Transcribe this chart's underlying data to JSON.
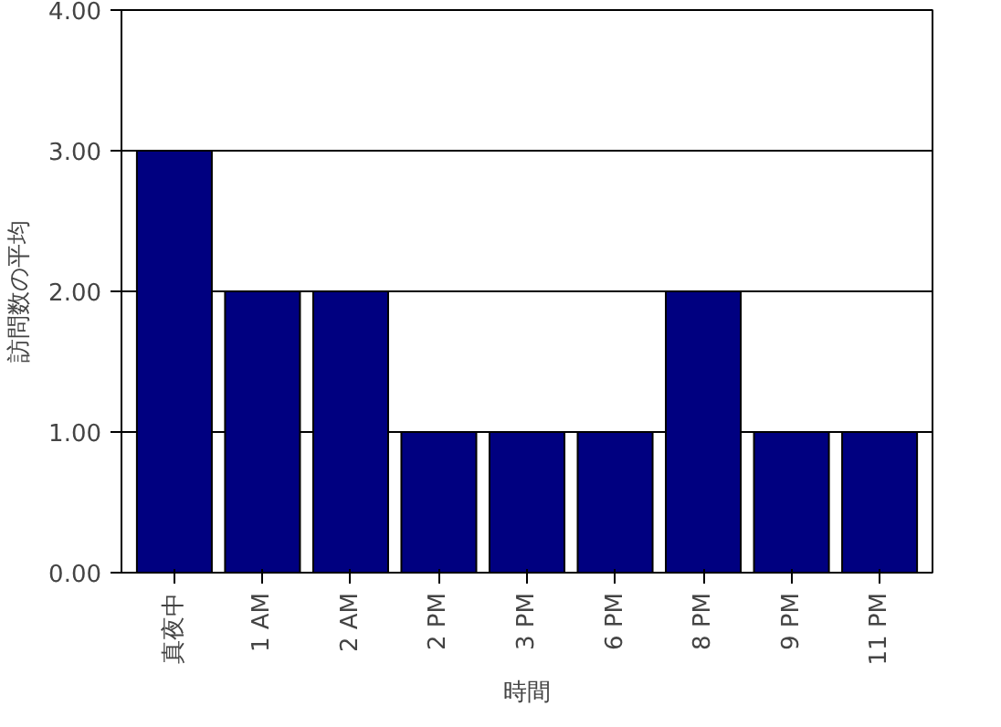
{
  "chart_data": {
    "type": "bar",
    "xlabel": "時間",
    "ylabel": "訪問数の平均",
    "categories": [
      "真夜中",
      "1 AM",
      "2 AM",
      "2 PM",
      "3 PM",
      "6 PM",
      "8 PM",
      "9 PM",
      "11 PM"
    ],
    "values": [
      3,
      2,
      2,
      1,
      1,
      1,
      2,
      1,
      1
    ],
    "color": "#000080",
    "ylim": [
      0,
      4
    ],
    "yticks": [
      {
        "value": 0,
        "label": "0.00"
      },
      {
        "value": 1,
        "label": "1.00"
      },
      {
        "value": 2,
        "label": "2.00"
      },
      {
        "value": 3,
        "label": "3.00"
      },
      {
        "value": 4,
        "label": "4.00"
      }
    ],
    "grid": "y"
  }
}
